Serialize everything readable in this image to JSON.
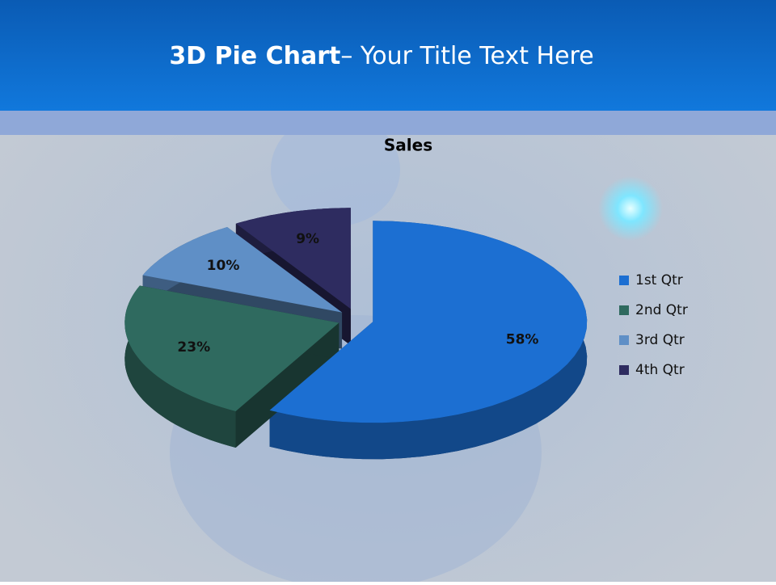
{
  "slide": {
    "title_bold": "3D Pie Chart",
    "title_rest": "– Your Title Text Here"
  },
  "chart_data": {
    "type": "pie",
    "title": "Sales",
    "categories": [
      "1st Qtr",
      "2nd Qtr",
      "3rd Qtr",
      "4th Qtr"
    ],
    "values": [
      58,
      23,
      10,
      9
    ],
    "value_labels": [
      "58%",
      "23%",
      "10%",
      "9%"
    ],
    "colors": [
      "#1c6fd2",
      "#2f6a5f",
      "#5f8fc6",
      "#2e2c60"
    ],
    "legend": "right"
  }
}
